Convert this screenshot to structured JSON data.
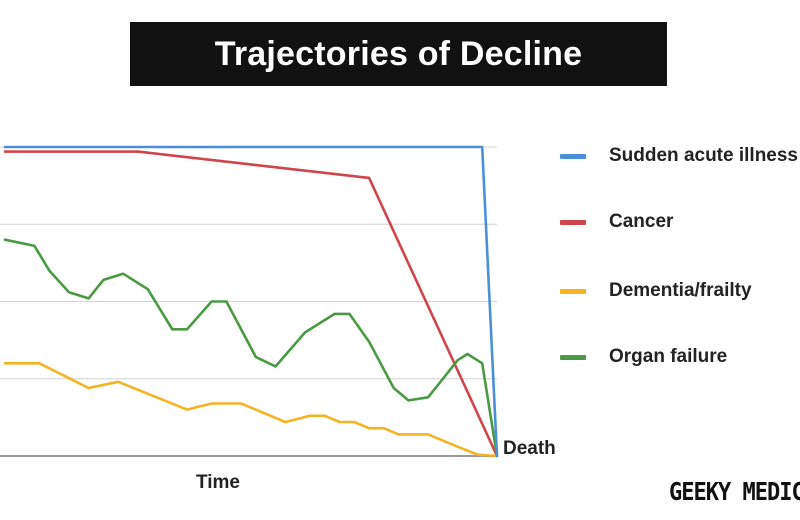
{
  "title": "Trajectories of Decline",
  "brand": "GEEKY MEDICS",
  "chart_data": {
    "type": "line",
    "title": "Trajectories of Decline",
    "xlabel": "Time",
    "ylabel": "",
    "x_end_label": "Death",
    "xlim": [
      0,
      100
    ],
    "ylim": [
      0,
      100
    ],
    "grid": true,
    "legend_position": "right",
    "series": [
      {
        "name": "Sudden acute illness",
        "color": "#4a90d9",
        "x": [
          0,
          97,
          100
        ],
        "y": [
          100,
          100,
          0
        ]
      },
      {
        "name": "Cancer",
        "color": "#d0454c",
        "x": [
          0,
          27,
          74,
          100
        ],
        "y": [
          98.5,
          98.5,
          90,
          0
        ]
      },
      {
        "name": "Dementia/frailty",
        "color": "#f5b324",
        "x": [
          0,
          7,
          17,
          23,
          37,
          42,
          48,
          57,
          62,
          65,
          68,
          71,
          74,
          77,
          80,
          86,
          92,
          96,
          100
        ],
        "y": [
          30,
          30,
          22,
          24,
          15,
          17,
          17,
          11,
          13,
          13,
          11,
          11,
          9,
          9,
          7,
          7,
          3,
          0.5,
          0
        ]
      },
      {
        "name": "Organ failure",
        "color": "#4a9a44",
        "x": [
          0,
          6,
          9,
          13,
          17,
          20,
          24,
          29,
          34,
          37,
          42,
          45,
          51,
          55,
          61,
          67,
          70,
          74,
          79,
          82,
          86,
          89,
          92,
          94,
          97,
          100
        ],
        "y": [
          70,
          68,
          60,
          53,
          51,
          57,
          59,
          54,
          41,
          41,
          50,
          50,
          32,
          29,
          40,
          46,
          46,
          37,
          22,
          18,
          19,
          25,
          31,
          33,
          30,
          0
        ]
      }
    ]
  }
}
